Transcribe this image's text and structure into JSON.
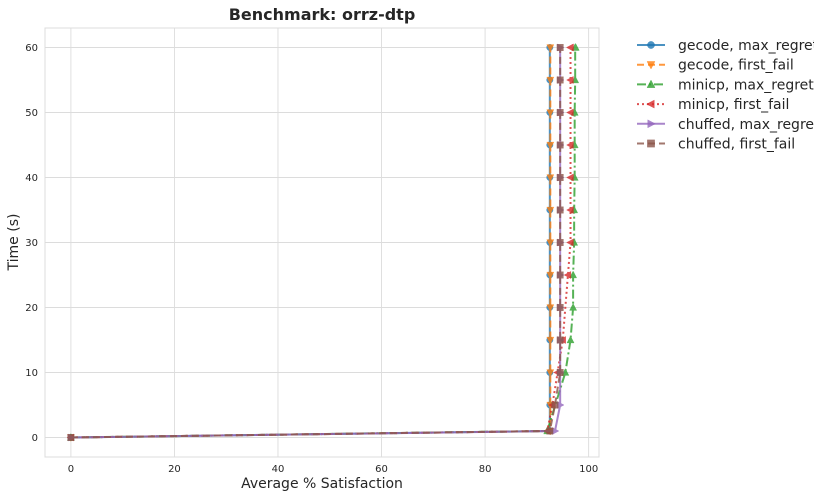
{
  "chart_data": {
    "type": "line",
    "title": "Benchmark: orrz-dtp",
    "xlabel": "Average % Satisfaction",
    "ylabel": "Time (s)",
    "xlim": [
      -5,
      102
    ],
    "ylim": [
      -3,
      63
    ],
    "xticks": [
      0,
      20,
      40,
      60,
      80,
      100
    ],
    "yticks": [
      0,
      10,
      20,
      30,
      40,
      50,
      60
    ],
    "grid": true,
    "legend_position": "outside-top-right",
    "series": [
      {
        "name": "gecode, max_regret",
        "color": "#1f77b4",
        "dash": "solid",
        "marker": "circle",
        "x": [
          0,
          92.5,
          92.5,
          92.5,
          92.5,
          92.5,
          92.5,
          92.5,
          92.5,
          92.5,
          92.5,
          92.5,
          92.5,
          92.5
        ],
        "y": [
          0,
          1,
          5,
          10,
          15,
          20,
          25,
          30,
          35,
          40,
          45,
          50,
          55,
          60
        ]
      },
      {
        "name": "gecode, first_fail",
        "color": "#ff7f0e",
        "dash": "dashed",
        "marker": "triangle-down",
        "x": [
          0,
          92.6,
          92.6,
          92.6,
          92.6,
          92.6,
          92.6,
          92.6,
          92.6,
          92.6,
          92.6,
          92.6,
          92.6,
          92.6
        ],
        "y": [
          0,
          1,
          5,
          10,
          15,
          20,
          25,
          30,
          35,
          40,
          45,
          50,
          55,
          60
        ]
      },
      {
        "name": "minicp, max_regret",
        "color": "#2ca02c",
        "dash": "dashdot",
        "marker": "triangle-up",
        "x": [
          0,
          92,
          95.5,
          96.5,
          97,
          97,
          97.2,
          97.2,
          97.3,
          97.3,
          97.3,
          97.4,
          97.4,
          97.5
        ],
        "y": [
          0,
          1,
          10,
          15,
          20,
          25,
          30,
          35,
          40,
          45,
          50,
          55,
          60,
          60
        ]
      },
      {
        "name": "minicp, first_fail",
        "color": "#d62728",
        "dash": "dotted",
        "marker": "triangle-left",
        "x": [
          0,
          92,
          93,
          94,
          95,
          96,
          96.5,
          96.5,
          96.5,
          96.5,
          96.5,
          96.5,
          96.5,
          96.5
        ],
        "y": [
          0,
          1,
          5,
          10,
          15,
          25,
          30,
          35,
          40,
          45,
          50,
          55,
          60,
          60
        ]
      },
      {
        "name": "chuffed, max_regret",
        "color": "#9467bd",
        "dash": "solid",
        "marker": "triangle-right",
        "x": [
          0,
          93.5,
          94.5,
          94.5,
          94.5,
          94.5,
          94.5,
          94.5,
          94.5,
          94.5,
          94.5,
          94.5,
          94.5,
          94.5
        ],
        "y": [
          0,
          1,
          5,
          10,
          15,
          20,
          25,
          30,
          35,
          40,
          45,
          50,
          55,
          60
        ]
      },
      {
        "name": "chuffed, first_fail",
        "color": "#8c564b",
        "dash": "dashed",
        "marker": "square",
        "x": [
          0,
          92.5,
          93.5,
          94.5,
          94.5,
          94.5,
          94.5,
          94.5,
          94.5,
          94.5,
          94.5,
          94.5,
          94.5,
          94.5
        ],
        "y": [
          0,
          1,
          5,
          10,
          15,
          20,
          25,
          30,
          35,
          40,
          45,
          50,
          55,
          60
        ]
      }
    ]
  }
}
